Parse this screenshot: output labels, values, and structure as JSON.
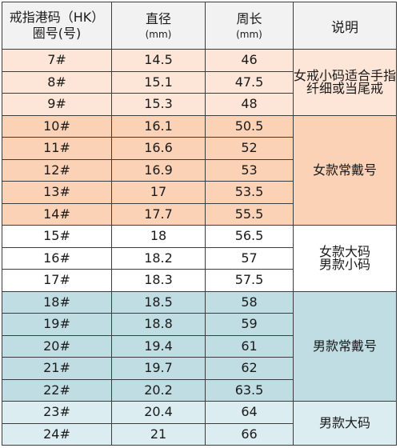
{
  "header": {
    "size_label_line1": "戒指港码（HK）",
    "size_label_line2": "圈号(号)",
    "diameter_label": "直径",
    "diameter_unit": "(mm)",
    "circumference_label": "周长",
    "circumference_unit": "(mm)",
    "note_label": "说明"
  },
  "colors": {
    "tier_light_peach": "#fde6d8",
    "tier_peach": "#fbd2b6",
    "tier_white": "#ffffff",
    "tier_teal": "#c1dde4",
    "tier_light_teal": "#dcedf2",
    "header_bg": "#f2f2f2",
    "border": "#3c3c3c"
  },
  "groups": [
    {
      "note": "女戒小码适合手指纤细或当尾戒",
      "rows": [
        {
          "size": "7#",
          "diameter": "14.5",
          "circumference": "46"
        },
        {
          "size": "8#",
          "diameter": "15.1",
          "circumference": "47.5"
        },
        {
          "size": "9#",
          "diameter": "15.3",
          "circumference": "48"
        }
      ]
    },
    {
      "note": "女款常戴号",
      "rows": [
        {
          "size": "10#",
          "diameter": "16.1",
          "circumference": "50.5"
        },
        {
          "size": "11#",
          "diameter": "16.6",
          "circumference": "52"
        },
        {
          "size": "12#",
          "diameter": "16.9",
          "circumference": "53"
        },
        {
          "size": "13#",
          "diameter": "17",
          "circumference": "53.5"
        },
        {
          "size": "14#",
          "diameter": "17.7",
          "circumference": "55.5"
        }
      ]
    },
    {
      "note_line1": "女款大码",
      "note_line2": "男款小码",
      "rows": [
        {
          "size": "15#",
          "diameter": "18",
          "circumference": "56.5"
        },
        {
          "size": "16#",
          "diameter": "18.2",
          "circumference": "57"
        },
        {
          "size": "17#",
          "diameter": "18.3",
          "circumference": "57.5"
        }
      ]
    },
    {
      "note": "男款常戴号",
      "rows": [
        {
          "size": "18#",
          "diameter": "18.5",
          "circumference": "58"
        },
        {
          "size": "19#",
          "diameter": "18.8",
          "circumference": "59"
        },
        {
          "size": "20#",
          "diameter": "19.4",
          "circumference": "61"
        },
        {
          "size": "21#",
          "diameter": "19.7",
          "circumference": "62"
        },
        {
          "size": "22#",
          "diameter": "20.2",
          "circumference": "63.5"
        }
      ]
    },
    {
      "note": "男款大码",
      "rows": [
        {
          "size": "23#",
          "diameter": "20.4",
          "circumference": "64"
        },
        {
          "size": "24#",
          "diameter": "21",
          "circumference": "66"
        }
      ]
    }
  ]
}
